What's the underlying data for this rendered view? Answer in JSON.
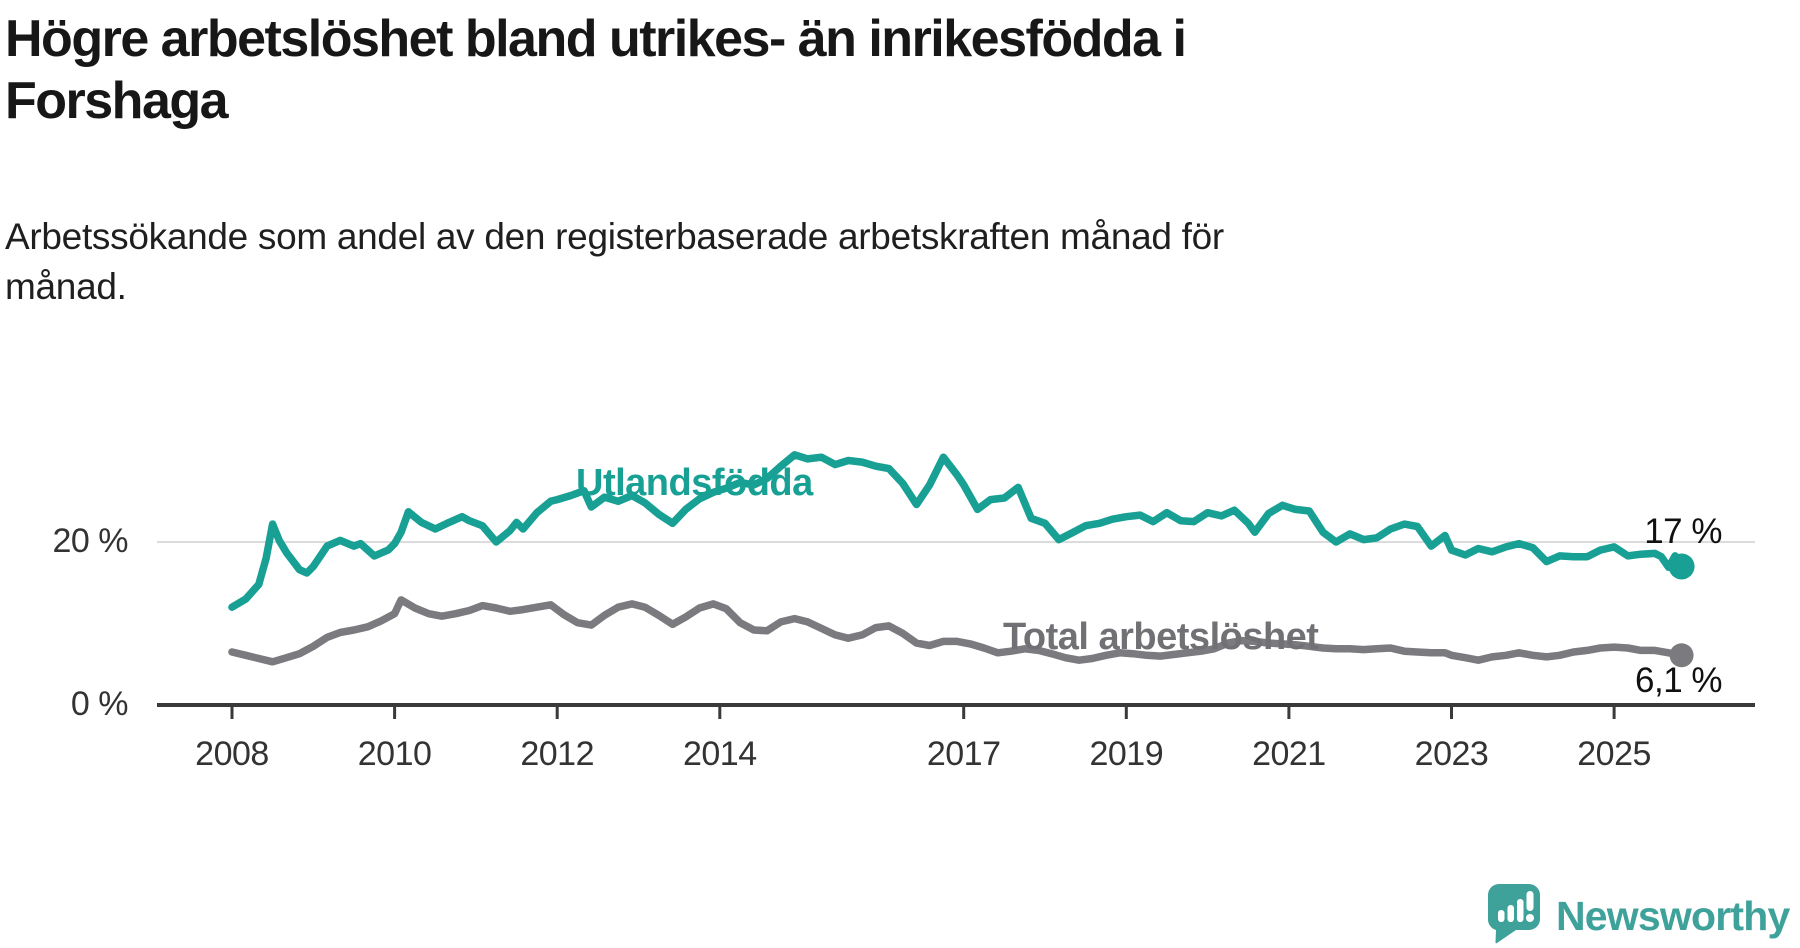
{
  "header": {
    "title_lines": [
      "Högre arbetslöshet bland utrikes- än inrikesfödda i",
      "Forshaga"
    ],
    "subtitle_lines": [
      "Arbetssökande som andel av den registerbaserade arbetskraften månad för",
      "månad."
    ]
  },
  "chart_data": {
    "type": "line",
    "title": "Högre arbetslöshet bland utrikes- än inrikesfödda i Forshaga",
    "subtitle": "Arbetssökande som andel av den registerbaserade arbetskraften månad för månad.",
    "xlabel": "",
    "ylabel": "",
    "x_unit": "decimal year, monthly observations",
    "xlim": [
      2007.1,
      2026.7
    ],
    "ylim": [
      0,
      32
    ],
    "grid": "single horizontal gridline at 20 %",
    "legend_position": "inline labels next to lines",
    "yticks": [
      {
        "value": 20,
        "label": "20 %"
      },
      {
        "value": 0,
        "label": "0 %"
      }
    ],
    "xticks": [
      {
        "value": 2008,
        "label": "2008"
      },
      {
        "value": 2010,
        "label": "2010"
      },
      {
        "value": 2012,
        "label": "2012"
      },
      {
        "value": 2014,
        "label": "2014"
      },
      {
        "value": 2017,
        "label": "2017"
      },
      {
        "value": 2019,
        "label": "2019"
      },
      {
        "value": 2021,
        "label": "2021"
      },
      {
        "value": 2023,
        "label": "2023"
      },
      {
        "value": 2025,
        "label": "2025"
      }
    ],
    "series": [
      {
        "name": "Utlandsfödda",
        "color": "#18a094",
        "end_value": 17,
        "end_label": "17 %",
        "points": [
          [
            2008.0,
            12.0
          ],
          [
            2008.17,
            13.0
          ],
          [
            2008.33,
            14.8
          ],
          [
            2008.42,
            18.0
          ],
          [
            2008.5,
            22.2
          ],
          [
            2008.58,
            20.2
          ],
          [
            2008.67,
            18.7
          ],
          [
            2008.83,
            16.6
          ],
          [
            2008.92,
            16.2
          ],
          [
            2009.0,
            17.0
          ],
          [
            2009.17,
            19.5
          ],
          [
            2009.33,
            20.2
          ],
          [
            2009.5,
            19.5
          ],
          [
            2009.58,
            19.8
          ],
          [
            2009.75,
            18.3
          ],
          [
            2009.92,
            19.0
          ],
          [
            2010.0,
            19.8
          ],
          [
            2010.08,
            21.2
          ],
          [
            2010.17,
            23.7
          ],
          [
            2010.33,
            22.4
          ],
          [
            2010.5,
            21.6
          ],
          [
            2010.67,
            22.4
          ],
          [
            2010.83,
            23.1
          ],
          [
            2010.92,
            22.6
          ],
          [
            2011.08,
            22.0
          ],
          [
            2011.25,
            20.0
          ],
          [
            2011.42,
            21.4
          ],
          [
            2011.5,
            22.4
          ],
          [
            2011.58,
            21.6
          ],
          [
            2011.75,
            23.6
          ],
          [
            2011.92,
            25.0
          ],
          [
            2012.0,
            25.2
          ],
          [
            2012.17,
            25.7
          ],
          [
            2012.33,
            26.3
          ],
          [
            2012.42,
            24.3
          ],
          [
            2012.58,
            25.5
          ],
          [
            2012.75,
            25.0
          ],
          [
            2012.92,
            25.7
          ],
          [
            2013.08,
            24.8
          ],
          [
            2013.25,
            23.4
          ],
          [
            2013.42,
            22.3
          ],
          [
            2013.58,
            24.0
          ],
          [
            2013.75,
            25.3
          ],
          [
            2013.92,
            26.1
          ],
          [
            2014.08,
            26.6
          ],
          [
            2014.25,
            27.3
          ],
          [
            2014.42,
            27.0
          ],
          [
            2014.58,
            27.8
          ],
          [
            2014.75,
            29.3
          ],
          [
            2014.92,
            30.7
          ],
          [
            2015.08,
            30.2
          ],
          [
            2015.25,
            30.4
          ],
          [
            2015.42,
            29.5
          ],
          [
            2015.58,
            30.0
          ],
          [
            2015.75,
            29.8
          ],
          [
            2015.92,
            29.3
          ],
          [
            2016.08,
            29.0
          ],
          [
            2016.25,
            27.2
          ],
          [
            2016.42,
            24.6
          ],
          [
            2016.58,
            27.0
          ],
          [
            2016.75,
            30.4
          ],
          [
            2016.92,
            28.2
          ],
          [
            2017.0,
            27.0
          ],
          [
            2017.17,
            24.0
          ],
          [
            2017.33,
            25.2
          ],
          [
            2017.5,
            25.4
          ],
          [
            2017.67,
            26.7
          ],
          [
            2017.83,
            22.9
          ],
          [
            2018.0,
            22.3
          ],
          [
            2018.17,
            20.3
          ],
          [
            2018.33,
            21.1
          ],
          [
            2018.5,
            22.0
          ],
          [
            2018.67,
            22.3
          ],
          [
            2018.83,
            22.8
          ],
          [
            2019.0,
            23.1
          ],
          [
            2019.17,
            23.3
          ],
          [
            2019.33,
            22.5
          ],
          [
            2019.5,
            23.6
          ],
          [
            2019.67,
            22.6
          ],
          [
            2019.83,
            22.5
          ],
          [
            2020.0,
            23.6
          ],
          [
            2020.17,
            23.2
          ],
          [
            2020.33,
            23.9
          ],
          [
            2020.5,
            22.3
          ],
          [
            2020.58,
            21.2
          ],
          [
            2020.75,
            23.5
          ],
          [
            2020.92,
            24.5
          ],
          [
            2021.08,
            24.0
          ],
          [
            2021.25,
            23.8
          ],
          [
            2021.42,
            21.2
          ],
          [
            2021.58,
            20.0
          ],
          [
            2021.75,
            21.0
          ],
          [
            2021.92,
            20.3
          ],
          [
            2022.08,
            20.5
          ],
          [
            2022.25,
            21.6
          ],
          [
            2022.42,
            22.2
          ],
          [
            2022.58,
            21.9
          ],
          [
            2022.75,
            19.5
          ],
          [
            2022.92,
            20.8
          ],
          [
            2023.0,
            19.0
          ],
          [
            2023.17,
            18.4
          ],
          [
            2023.33,
            19.2
          ],
          [
            2023.5,
            18.8
          ],
          [
            2023.67,
            19.4
          ],
          [
            2023.83,
            19.8
          ],
          [
            2024.0,
            19.3
          ],
          [
            2024.17,
            17.6
          ],
          [
            2024.33,
            18.3
          ],
          [
            2024.5,
            18.2
          ],
          [
            2024.67,
            18.2
          ],
          [
            2024.83,
            19.0
          ],
          [
            2025.0,
            19.4
          ],
          [
            2025.17,
            18.3
          ],
          [
            2025.33,
            18.5
          ],
          [
            2025.5,
            18.6
          ],
          [
            2025.58,
            18.2
          ],
          [
            2025.67,
            16.9
          ],
          [
            2025.75,
            18.3
          ],
          [
            2025.83,
            17.0
          ]
        ]
      },
      {
        "name": "Total arbetslöshet",
        "color": "#7b7b7f",
        "end_value": 6.1,
        "end_label": "6,1 %",
        "points": [
          [
            2008.0,
            6.5
          ],
          [
            2008.17,
            6.1
          ],
          [
            2008.33,
            5.7
          ],
          [
            2008.5,
            5.3
          ],
          [
            2008.67,
            5.8
          ],
          [
            2008.83,
            6.3
          ],
          [
            2009.0,
            7.2
          ],
          [
            2009.17,
            8.3
          ],
          [
            2009.33,
            8.9
          ],
          [
            2009.5,
            9.2
          ],
          [
            2009.67,
            9.6
          ],
          [
            2009.83,
            10.3
          ],
          [
            2010.0,
            11.2
          ],
          [
            2010.08,
            12.9
          ],
          [
            2010.25,
            11.9
          ],
          [
            2010.42,
            11.2
          ],
          [
            2010.58,
            10.9
          ],
          [
            2010.75,
            11.2
          ],
          [
            2010.92,
            11.6
          ],
          [
            2011.08,
            12.2
          ],
          [
            2011.25,
            11.9
          ],
          [
            2011.42,
            11.5
          ],
          [
            2011.58,
            11.7
          ],
          [
            2011.75,
            12.0
          ],
          [
            2011.92,
            12.3
          ],
          [
            2012.08,
            11.1
          ],
          [
            2012.25,
            10.1
          ],
          [
            2012.42,
            9.8
          ],
          [
            2012.58,
            11.0
          ],
          [
            2012.75,
            12.0
          ],
          [
            2012.92,
            12.4
          ],
          [
            2013.08,
            12.0
          ],
          [
            2013.25,
            11.0
          ],
          [
            2013.42,
            9.9
          ],
          [
            2013.58,
            10.8
          ],
          [
            2013.75,
            11.9
          ],
          [
            2013.92,
            12.4
          ],
          [
            2014.08,
            11.8
          ],
          [
            2014.25,
            10.1
          ],
          [
            2014.42,
            9.2
          ],
          [
            2014.58,
            9.1
          ],
          [
            2014.75,
            10.2
          ],
          [
            2014.92,
            10.6
          ],
          [
            2015.08,
            10.2
          ],
          [
            2015.25,
            9.4
          ],
          [
            2015.42,
            8.6
          ],
          [
            2015.58,
            8.2
          ],
          [
            2015.75,
            8.6
          ],
          [
            2015.92,
            9.5
          ],
          [
            2016.08,
            9.7
          ],
          [
            2016.25,
            8.8
          ],
          [
            2016.42,
            7.6
          ],
          [
            2016.58,
            7.3
          ],
          [
            2016.75,
            7.8
          ],
          [
            2016.92,
            7.8
          ],
          [
            2017.08,
            7.5
          ],
          [
            2017.25,
            7.0
          ],
          [
            2017.42,
            6.4
          ],
          [
            2017.58,
            6.6
          ],
          [
            2017.75,
            6.9
          ],
          [
            2017.92,
            6.7
          ],
          [
            2018.08,
            6.3
          ],
          [
            2018.25,
            5.8
          ],
          [
            2018.42,
            5.5
          ],
          [
            2018.58,
            5.7
          ],
          [
            2018.75,
            6.1
          ],
          [
            2018.92,
            6.4
          ],
          [
            2019.08,
            6.3
          ],
          [
            2019.25,
            6.1
          ],
          [
            2019.42,
            6.0
          ],
          [
            2019.58,
            6.2
          ],
          [
            2019.75,
            6.4
          ],
          [
            2019.92,
            6.6
          ],
          [
            2020.08,
            6.9
          ],
          [
            2020.25,
            7.6
          ],
          [
            2020.42,
            7.9
          ],
          [
            2020.58,
            7.8
          ],
          [
            2020.75,
            7.6
          ],
          [
            2020.92,
            7.5
          ],
          [
            2021.08,
            7.4
          ],
          [
            2021.25,
            7.2
          ],
          [
            2021.42,
            7.0
          ],
          [
            2021.58,
            6.9
          ],
          [
            2021.75,
            6.9
          ],
          [
            2021.92,
            6.8
          ],
          [
            2022.08,
            6.9
          ],
          [
            2022.25,
            7.0
          ],
          [
            2022.42,
            6.6
          ],
          [
            2022.58,
            6.5
          ],
          [
            2022.75,
            6.4
          ],
          [
            2022.92,
            6.4
          ],
          [
            2023.0,
            6.1
          ],
          [
            2023.17,
            5.8
          ],
          [
            2023.33,
            5.5
          ],
          [
            2023.5,
            5.9
          ],
          [
            2023.67,
            6.1
          ],
          [
            2023.83,
            6.4
          ],
          [
            2024.0,
            6.1
          ],
          [
            2024.17,
            5.9
          ],
          [
            2024.33,
            6.1
          ],
          [
            2024.5,
            6.5
          ],
          [
            2024.67,
            6.7
          ],
          [
            2024.83,
            7.0
          ],
          [
            2025.0,
            7.1
          ],
          [
            2025.17,
            7.0
          ],
          [
            2025.33,
            6.7
          ],
          [
            2025.5,
            6.7
          ],
          [
            2025.67,
            6.4
          ],
          [
            2025.83,
            6.1
          ]
        ]
      }
    ]
  },
  "footer": {
    "brand": "Newsworthy"
  },
  "colors": {
    "accent_teal": "#18a094",
    "line_gray": "#7b7b7f",
    "label_gray": "#717175",
    "axis": "#3a3a3a",
    "gridline": "#dcdcdc",
    "text": "#171717",
    "logo_teal": "#3fa29a"
  }
}
